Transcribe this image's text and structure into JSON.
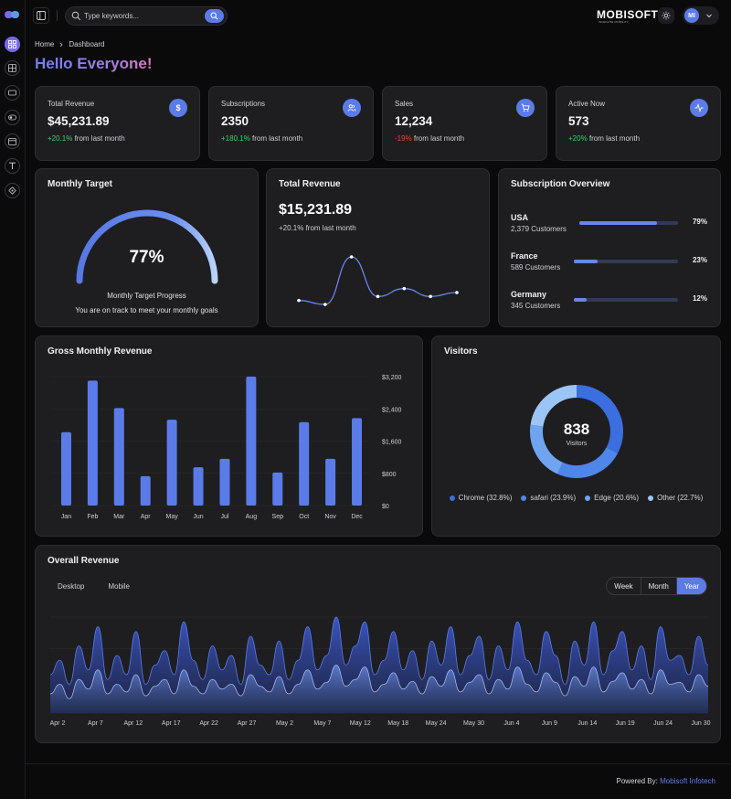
{
  "sidebar": {
    "items": [
      {
        "icon": "dashboard-icon",
        "active": true
      },
      {
        "icon": "grid-icon"
      },
      {
        "icon": "card-icon"
      },
      {
        "icon": "toggle-icon"
      },
      {
        "icon": "calendar-icon"
      },
      {
        "icon": "text-icon"
      },
      {
        "icon": "diamond-icon"
      }
    ]
  },
  "header": {
    "search_placeholder": "Type keywords...",
    "brand": "MOBISOFT",
    "brand_sub": "INNOVATE MOBILITY",
    "avatar_initials": "MI"
  },
  "breadcrumb": {
    "home": "Home",
    "current": "Dashboard"
  },
  "greeting": "Hello Everyone!",
  "stats": [
    {
      "title": "Total Revenue",
      "value": "$45,231.89",
      "change": "+20.1%",
      "change_suffix": " from last month",
      "icon": "dollar-icon",
      "icon_glyph": "$"
    },
    {
      "title": "Subscriptions",
      "value": "2350",
      "change": "+180.1%",
      "change_suffix": " from last month",
      "icon": "users-icon"
    },
    {
      "title": "Sales",
      "value": "12,234",
      "change": "-19%",
      "change_suffix": " from last month",
      "icon": "cart-icon"
    },
    {
      "title": "Active Now",
      "value": "573",
      "change": "+20%",
      "change_suffix": " from last month",
      "icon": "activity-icon"
    }
  ],
  "monthly_target": {
    "title": "Monthly Target",
    "percent_label": "77%",
    "percent": 77,
    "caption": "Monthly Target Progress",
    "subcaption": "You are on track to meet your monthly goals"
  },
  "total_revenue_card": {
    "title": "Total Revenue",
    "value": "$15,231.89",
    "sub": "+20.1% from last month"
  },
  "subscription_overview": {
    "title": "Subscription Overview",
    "rows": [
      {
        "country": "USA",
        "customers": "2,379 Customers",
        "percent": 79,
        "percent_label": "79%"
      },
      {
        "country": "France",
        "customers": "589 Customers",
        "percent": 23,
        "percent_label": "23%"
      },
      {
        "country": "Germany",
        "customers": "345 Customers",
        "percent": 12,
        "percent_label": "12%"
      }
    ]
  },
  "visitors": {
    "title": "Visitors",
    "total": "838",
    "total_label": "Visitors"
  },
  "overall_revenue": {
    "title": "Overall Revenue",
    "tabs": [
      "Desktop",
      "Mobile"
    ],
    "ranges": [
      "Week",
      "Month",
      "Year"
    ],
    "active_range": "Year"
  },
  "footer": {
    "prefix": "Powered By: ",
    "link": "Mobisoft Infotech"
  },
  "colors": {
    "accent": "#5b7ce8",
    "positive": "#3fcf6b",
    "negative": "#ef4444",
    "card": "#1e1e20"
  },
  "chart_data": [
    {
      "type": "line",
      "title": "Total Revenue",
      "x": [
        1,
        2,
        3,
        4,
        5,
        6,
        7
      ],
      "values": [
        400,
        300,
        1500,
        500,
        700,
        500,
        600
      ],
      "grid": false
    },
    {
      "type": "bar",
      "title": "Gross Monthly Revenue",
      "categories": [
        "Jan",
        "Feb",
        "Mar",
        "Apr",
        "May",
        "Jun",
        "Jul",
        "Aug",
        "Sep",
        "Oct",
        "Nov",
        "Dec"
      ],
      "values": [
        1820,
        3100,
        2420,
        730,
        2130,
        950,
        1160,
        3200,
        820,
        2070,
        1160,
        2170
      ],
      "ylim": [
        0,
        3200
      ],
      "yticks": [
        "$0",
        "$800",
        "$1,600",
        "$2,400",
        "$3,200"
      ],
      "ytick_values": [
        0,
        800,
        1600,
        2400,
        3200
      ],
      "grid": true
    },
    {
      "type": "pie",
      "title": "Visitors",
      "series": [
        {
          "name": "Chrome (32.8%)",
          "value": 32.8,
          "color": "#3b6fe0"
        },
        {
          "name": "safari (23.9%)",
          "value": 23.9,
          "color": "#4f86ea"
        },
        {
          "name": "Edge (20.6%)",
          "value": 20.6,
          "color": "#6ea4f0"
        },
        {
          "name": "Other (22.7%)",
          "value": 22.7,
          "color": "#9cc5f7"
        }
      ]
    },
    {
      "type": "area",
      "title": "Overall Revenue",
      "x_ticks": [
        "Apr 2",
        "Apr 7",
        "Apr 12",
        "Apr 17",
        "Apr 22",
        "Apr 27",
        "May 2",
        "May 7",
        "May 12",
        "May 18",
        "May 24",
        "May 30",
        "Jun 4",
        "Jun 9",
        "Jun 14",
        "Jun 19",
        "Jun 24",
        "Jun 30"
      ],
      "series": [
        {
          "name": "Desktop",
          "values": [
            40,
            55,
            30,
            70,
            45,
            90,
            35,
            60,
            40,
            85,
            30,
            50,
            65,
            40,
            95,
            55,
            35,
            70,
            45,
            60,
            30,
            80,
            50,
            40,
            75,
            35,
            55,
            90,
            45,
            60,
            100,
            50,
            70,
            95,
            40,
            55,
            85,
            45,
            65,
            35,
            75,
            50,
            90,
            40,
            60,
            80,
            35,
            70,
            45,
            95,
            55,
            40,
            85,
            60,
            30,
            75,
            50,
            95,
            40,
            65,
            85,
            45,
            70,
            35,
            90,
            55,
            60,
            40,
            80,
            50
          ]
        },
        {
          "name": "Mobile",
          "values": [
            20,
            30,
            15,
            35,
            25,
            45,
            20,
            30,
            22,
            40,
            18,
            28,
            35,
            20,
            45,
            28,
            20,
            35,
            25,
            30,
            18,
            40,
            28,
            22,
            38,
            20,
            30,
            45,
            25,
            32,
            50,
            28,
            35,
            48,
            22,
            30,
            42,
            25,
            33,
            20,
            38,
            28,
            45,
            22,
            32,
            40,
            20,
            35,
            25,
            48,
            30,
            22,
            42,
            32,
            18,
            38,
            28,
            48,
            22,
            33,
            42,
            25,
            35,
            20,
            45,
            30,
            32,
            22,
            40,
            28
          ]
        }
      ]
    }
  ]
}
